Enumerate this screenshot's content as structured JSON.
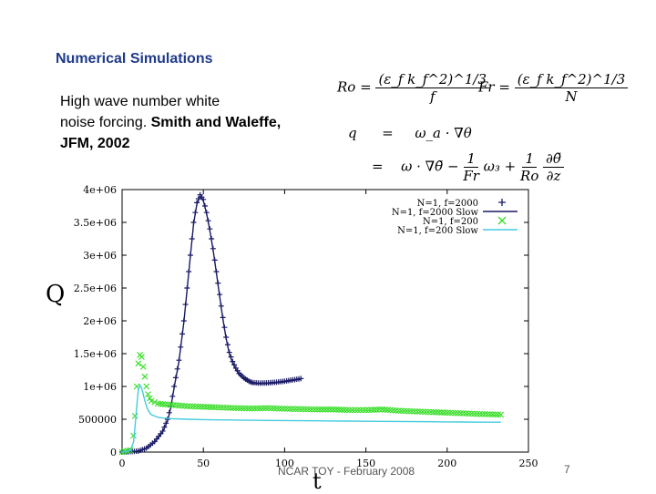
{
  "slide": {
    "title": "Numerical Simulations",
    "body_line1": "High wave number white",
    "body_line2": "noise forcing.",
    "body_bold": "Smith and Waleffe, JFM, 2002",
    "footer": "NCAR TOY - February 2008",
    "page_number": "7"
  },
  "equations": {
    "ro_lhs": "Ro =",
    "ro_num": "(ε_f k_f^2)^1/3",
    "ro_den": "f",
    "fr_lhs": "Fr =",
    "fr_num": "(ε_f k_f^2)^1/3",
    "fr_den": "N",
    "q_lhs": "q",
    "eq_sign": "=",
    "q_rhs": "ω_a · ∇θ",
    "eq2_sign": "=",
    "q2_rhs_a": "ω · ∇θ̃ −",
    "q2_frac1_num": "1",
    "q2_frac1_den": "Fr",
    "q2_mid": "ω₃ +",
    "q2_frac2_num": "1",
    "q2_frac2_den": "Ro",
    "q2_frac3_num": "∂θ̃",
    "q2_frac3_den": "∂z"
  },
  "chart_data": {
    "type": "line",
    "xlabel": "t",
    "ylabel": "Q",
    "xlim": [
      0,
      250
    ],
    "ylim": [
      0,
      4000000
    ],
    "x_ticks": [
      0,
      50,
      100,
      150,
      200,
      250
    ],
    "x_tick_labels": [
      "0",
      "50",
      "100",
      "150",
      "200",
      "250"
    ],
    "y_ticks": [
      0,
      500000,
      1000000,
      1500000,
      2000000,
      2500000,
      3000000,
      3500000,
      4000000
    ],
    "y_tick_labels": [
      "0",
      "500000",
      "1e+06",
      "1.5e+06",
      "2e+06",
      "2.5e+06",
      "3e+06",
      "3.5e+06",
      "4e+06"
    ],
    "legend_position": "top-right",
    "series": [
      {
        "name": "N=1, f=2000",
        "style": "marker-plus",
        "color": "#1a1a66",
        "x": [
          0,
          10,
          15,
          20,
          25,
          28,
          30,
          32,
          35,
          38,
          40,
          42,
          44,
          46,
          48,
          50,
          52,
          54,
          56,
          58,
          60,
          62,
          64,
          66,
          68,
          70,
          72,
          75,
          78,
          80,
          85,
          90,
          95,
          100,
          105,
          110
        ],
        "y": [
          0,
          15000,
          60000,
          160000,
          320000,
          500000,
          700000,
          1000000,
          1400000,
          2000000,
          2500000,
          3000000,
          3500000,
          3800000,
          3920000,
          3850000,
          3650000,
          3400000,
          3100000,
          2750000,
          2400000,
          2050000,
          1750000,
          1520000,
          1380000,
          1280000,
          1200000,
          1130000,
          1080000,
          1060000,
          1050000,
          1055000,
          1065000,
          1080000,
          1100000,
          1120000
        ]
      },
      {
        "name": "N=1, f=2000 Slow",
        "style": "line",
        "color": "#1a1a66",
        "x": [
          0,
          10,
          15,
          20,
          25,
          28,
          30,
          32,
          35,
          38,
          40,
          42,
          44,
          46,
          48,
          50,
          52,
          54,
          56,
          58,
          60,
          62,
          64,
          66,
          68,
          70,
          72,
          75,
          78,
          80,
          85,
          90,
          95,
          100,
          105,
          110
        ],
        "y": [
          0,
          12000,
          55000,
          150000,
          310000,
          480000,
          680000,
          980000,
          1380000,
          1980000,
          2480000,
          2980000,
          3480000,
          3780000,
          3900000,
          3830000,
          3630000,
          3380000,
          3080000,
          2730000,
          2380000,
          2030000,
          1730000,
          1500000,
          1360000,
          1260000,
          1180000,
          1110000,
          1065000,
          1045000,
          1040000,
          1045000,
          1055000,
          1070000,
          1090000,
          1110000
        ]
      },
      {
        "name": "N=1, f=200",
        "style": "marker-x",
        "color": "#33dd22",
        "x": [
          0,
          5,
          7,
          8,
          9,
          10,
          11,
          12,
          13,
          14,
          15,
          16,
          17,
          18,
          20,
          22,
          25,
          30,
          40,
          50,
          60,
          70,
          80,
          90,
          100,
          110,
          120,
          130,
          140,
          150,
          160,
          170,
          180,
          190,
          200,
          210,
          220,
          233
        ],
        "y": [
          0,
          30000,
          250000,
          550000,
          1000000,
          1350000,
          1480000,
          1450000,
          1300000,
          1150000,
          1000000,
          880000,
          820000,
          780000,
          760000,
          740000,
          730000,
          720000,
          700000,
          690000,
          680000,
          670000,
          665000,
          670000,
          660000,
          655000,
          650000,
          650000,
          640000,
          640000,
          650000,
          630000,
          620000,
          610000,
          600000,
          590000,
          580000,
          570000
        ]
      },
      {
        "name": "N=1, f=200 Slow",
        "style": "line",
        "color": "#44ccdd",
        "x": [
          0,
          5,
          7,
          8,
          9,
          10,
          11,
          12,
          13,
          14,
          15,
          16,
          17,
          18,
          20,
          22,
          25,
          30,
          40,
          50,
          60,
          70,
          80,
          90,
          100,
          110,
          120,
          130,
          140,
          150,
          160,
          170,
          180,
          190,
          200,
          210,
          220,
          233
        ],
        "y": [
          0,
          20000,
          150000,
          400000,
          700000,
          950000,
          1020000,
          980000,
          880000,
          780000,
          700000,
          640000,
          600000,
          570000,
          550000,
          530000,
          520000,
          510000,
          500000,
          495000,
          490000,
          488000,
          485000,
          482000,
          480000,
          478000,
          476000,
          474000,
          472000,
          470000,
          468000,
          466000,
          464000,
          462000,
          460000,
          458000,
          456000,
          455000
        ]
      }
    ]
  }
}
